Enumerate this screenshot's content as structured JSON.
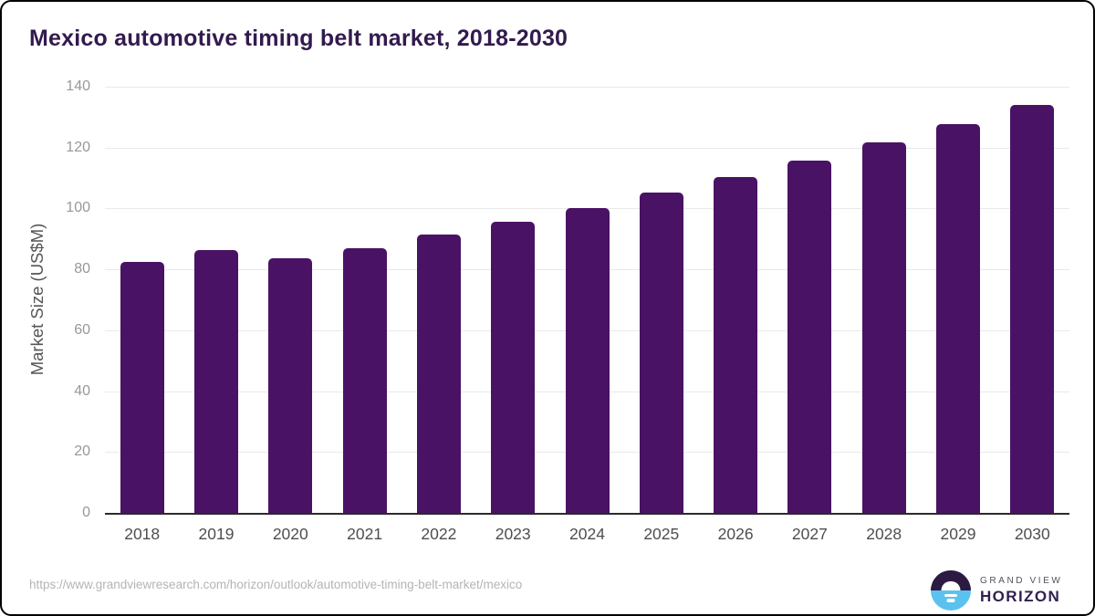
{
  "chart_data": {
    "type": "bar",
    "title": "Mexico automotive timing belt market, 2018-2030",
    "xlabel": "",
    "ylabel": "Market Size (US$M)",
    "categories": [
      "2018",
      "2019",
      "2020",
      "2021",
      "2022",
      "2023",
      "2024",
      "2025",
      "2026",
      "2027",
      "2028",
      "2029",
      "2030"
    ],
    "values": [
      82.5,
      86.4,
      83.6,
      87.1,
      91.4,
      95.6,
      100.2,
      105.1,
      110.4,
      115.7,
      121.7,
      127.8,
      134.0
    ],
    "ylim": [
      0,
      140
    ],
    "yticks": [
      0,
      20,
      40,
      60,
      80,
      100,
      120,
      140
    ],
    "grid": "horizontal-gridlines",
    "legend": "none",
    "bar_color": "#4a1264"
  },
  "footer": {
    "source_url": "https://www.grandviewresearch.com/horizon/outlook/automotive-timing-belt-market/mexico",
    "logo": {
      "line1": "GRAND VIEW",
      "line2": "HORIZON",
      "icon": "horizon-sun-icon"
    }
  },
  "colors": {
    "title_text": "#321a4e",
    "bar_fill": "#4a1264",
    "gridline": "#e9e9e9",
    "axis_line": "#2b2b2b",
    "y_tick_text": "#989898",
    "x_tick_text": "#4e4e4e",
    "y_axis_title_text": "#555555",
    "source_url_text": "#b4b4b4",
    "frame_border": "#000000",
    "logo_sky": "#2c1a43",
    "logo_sea": "#5bc2ef",
    "logo_text_top": "#53505c",
    "logo_text_bottom": "#32204f"
  }
}
